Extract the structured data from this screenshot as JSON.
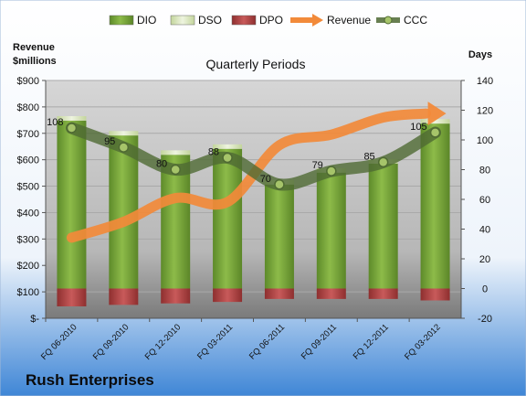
{
  "company": "Rush Enterprises",
  "colors": {
    "dio": "#7aa83a",
    "dso": "#ccdcac",
    "dpo": "#b94a4a",
    "revenue": "#f28a3a",
    "ccc": "#4f6a33"
  },
  "chart_data": {
    "type": "bar",
    "title": "Quarterly Periods",
    "categories": [
      "FQ 06-2010",
      "FQ 09-2010",
      "FQ 12-2010",
      "FQ 03-2011",
      "FQ 06-2011",
      "FQ 09-2011",
      "FQ 12-2011",
      "FQ 03-2012"
    ],
    "left_axis": {
      "label_line1": "Revenue",
      "label_line2": "$millions",
      "ylim": [
        0,
        900
      ],
      "ticks": [
        0,
        100,
        200,
        300,
        400,
        500,
        600,
        700,
        800,
        900
      ],
      "tick_labels": [
        "$-",
        "$100",
        "$200",
        "$300",
        "$400",
        "$500",
        "$600",
        "$700",
        "$800",
        "$900"
      ]
    },
    "right_axis": {
      "label": "Days",
      "ylim": [
        -20,
        140
      ],
      "ticks": [
        -20,
        0,
        20,
        40,
        60,
        80,
        100,
        120,
        140
      ],
      "tick_labels": [
        "-20",
        "0",
        "20",
        "40",
        "60",
        "80",
        "100",
        "120",
        "140"
      ]
    },
    "legend": [
      "DIO",
      "DSO",
      "DPO",
      "Revenue",
      "CCC"
    ],
    "legend_position": "top",
    "series": [
      {
        "name": "DIO",
        "axis": "right",
        "values": [
          113,
          103,
          90,
          94,
          70,
          78,
          84,
          111
        ]
      },
      {
        "name": "DSO",
        "axis": "right",
        "values": [
          3,
          3,
          3,
          3,
          3,
          3,
          3,
          3
        ]
      },
      {
        "name": "DPO",
        "axis": "right",
        "values": [
          -12,
          -11,
          -10,
          -9,
          -7,
          -7,
          -7,
          -8
        ]
      },
      {
        "name": "Revenue",
        "axis": "left",
        "values": [
          305,
          365,
          455,
          440,
          655,
          695,
          760,
          775
        ]
      },
      {
        "name": "CCC",
        "axis": "right",
        "values": [
          108,
          95,
          80,
          88,
          70,
          79,
          85,
          105
        ],
        "labels": [
          "108",
          "95",
          "80",
          "88",
          "70",
          "79",
          "85",
          "105"
        ]
      }
    ]
  }
}
